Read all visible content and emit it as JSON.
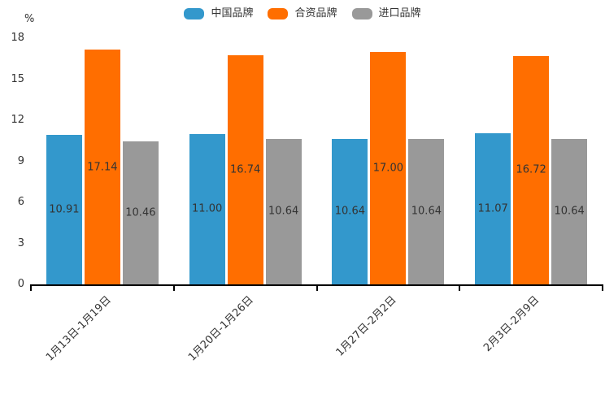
{
  "chart_data": {
    "type": "bar",
    "title": "",
    "xlabel": "",
    "ylabel": "%",
    "categories": [
      "1月13日-1月19日",
      "1月20日-1月26日",
      "1月27日-2月2日",
      "2月3日-2月9日"
    ],
    "series": [
      {
        "name": "中国品牌",
        "color": "#3398CC",
        "values": [
          10.91,
          11.0,
          10.64,
          11.07
        ]
      },
      {
        "name": "合资品牌",
        "color": "#FF6E00",
        "values": [
          17.14,
          16.74,
          17.0,
          16.72
        ]
      },
      {
        "name": "进口品牌",
        "color": "#999999",
        "values": [
          10.46,
          10.64,
          10.64,
          10.64
        ]
      }
    ],
    "y_ticks": [
      0,
      3,
      6,
      9,
      12,
      15,
      18
    ],
    "ylim": [
      0,
      18
    ],
    "value_label_decimals": 2,
    "legend_position": "top-center",
    "grid": "off",
    "bar_label_color": "#333333",
    "axis_color": "#000000",
    "text_color": "#333333"
  }
}
